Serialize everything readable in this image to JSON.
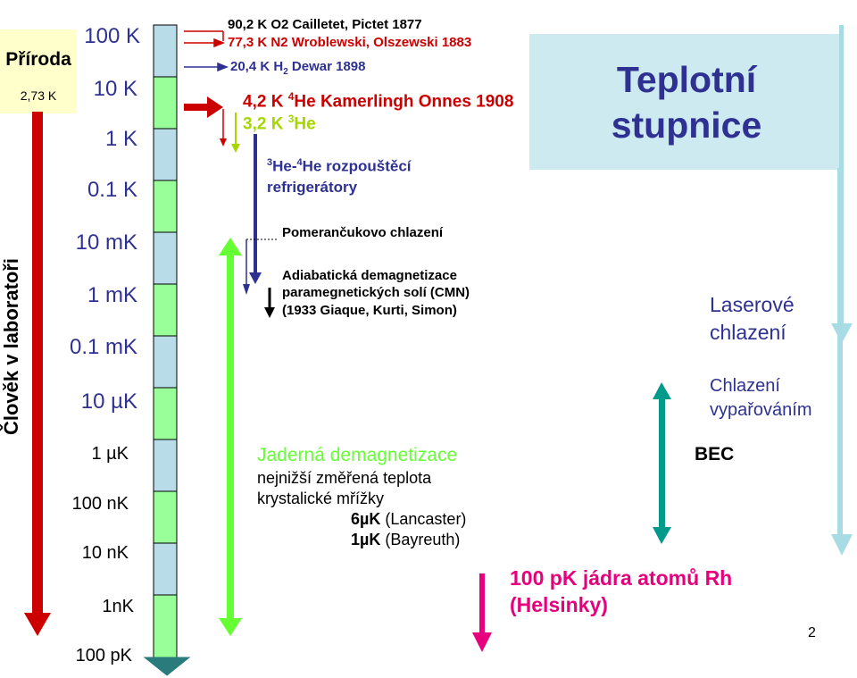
{
  "title": {
    "line1": "Teplotní",
    "line2": "stupnice"
  },
  "priroda": {
    "label": "Příroda",
    "value": "2,73 K"
  },
  "vertical_label": "Člověk v laboratoři",
  "scale_labels": [
    "100 K",
    "10 K",
    "1 K",
    "0.1 K",
    "10 mK",
    "1 mK",
    "0.1 mK",
    "10 µK",
    "1 µK",
    "100 nK",
    "10 nK",
    "1nK",
    "100 pK"
  ],
  "top_events": {
    "o2": "90,2 K  O2 Cailletet, Pictet 1877",
    "n2": "77,3 K N2 Wroblewski, Olszewski 1883",
    "h2_pre": "20,4 K H",
    "h2_sub": "2",
    "h2_post": " Dewar  1898",
    "he4_pre": "4,2 K ",
    "he4_sup": "4",
    "he4_post": "He Kamerlingh Onnes 1908",
    "he3_pre": "3,2 K ",
    "he3_sup": "3",
    "he3_post": "He",
    "mix_sup1": "3",
    "mix_a": "He-",
    "mix_sup2": "4",
    "mix_b": "He rozpouštěcí",
    "mix_line2": "refrigerátory"
  },
  "pomeranchuk": "Pomerančukovo chlazení",
  "adiabatic": {
    "line1": "Adiabatická demagnetizace",
    "line2": "paramegnetických solí (CMN)",
    "line3": "(1933 Giaque, Kurti, Simon)"
  },
  "nuclear": {
    "title": "Jaderná demagnetizace",
    "line1": "nejnižší změřená teplota",
    "line2": "krystalické  mřížky",
    "l3_bold": "6µK",
    "l3_rest": " (Lancaster)",
    "l4_bold": "1µK",
    "l4_rest": " (Bayreuth)"
  },
  "rh": {
    "line1": "100 pK jádra atomů Rh",
    "line2": "(Helsinky)"
  },
  "laser": {
    "line1": "Laserové",
    "line2": "chlazení"
  },
  "evap": {
    "line1": "Chlazení",
    "line2": "vypařováním"
  },
  "bec": "BEC",
  "page_number": "2",
  "colors": {
    "navy": "#2e3192",
    "red": "#cc0000",
    "green": "#66ff33",
    "lime": "#a6d600",
    "teal": "#009a8a",
    "lightblue": "#a8dce4",
    "magenta": "#e6007e",
    "title_bg": "#cdeaf0",
    "bar_green": "#99ff99",
    "bar_blue": "#b8dde8"
  }
}
